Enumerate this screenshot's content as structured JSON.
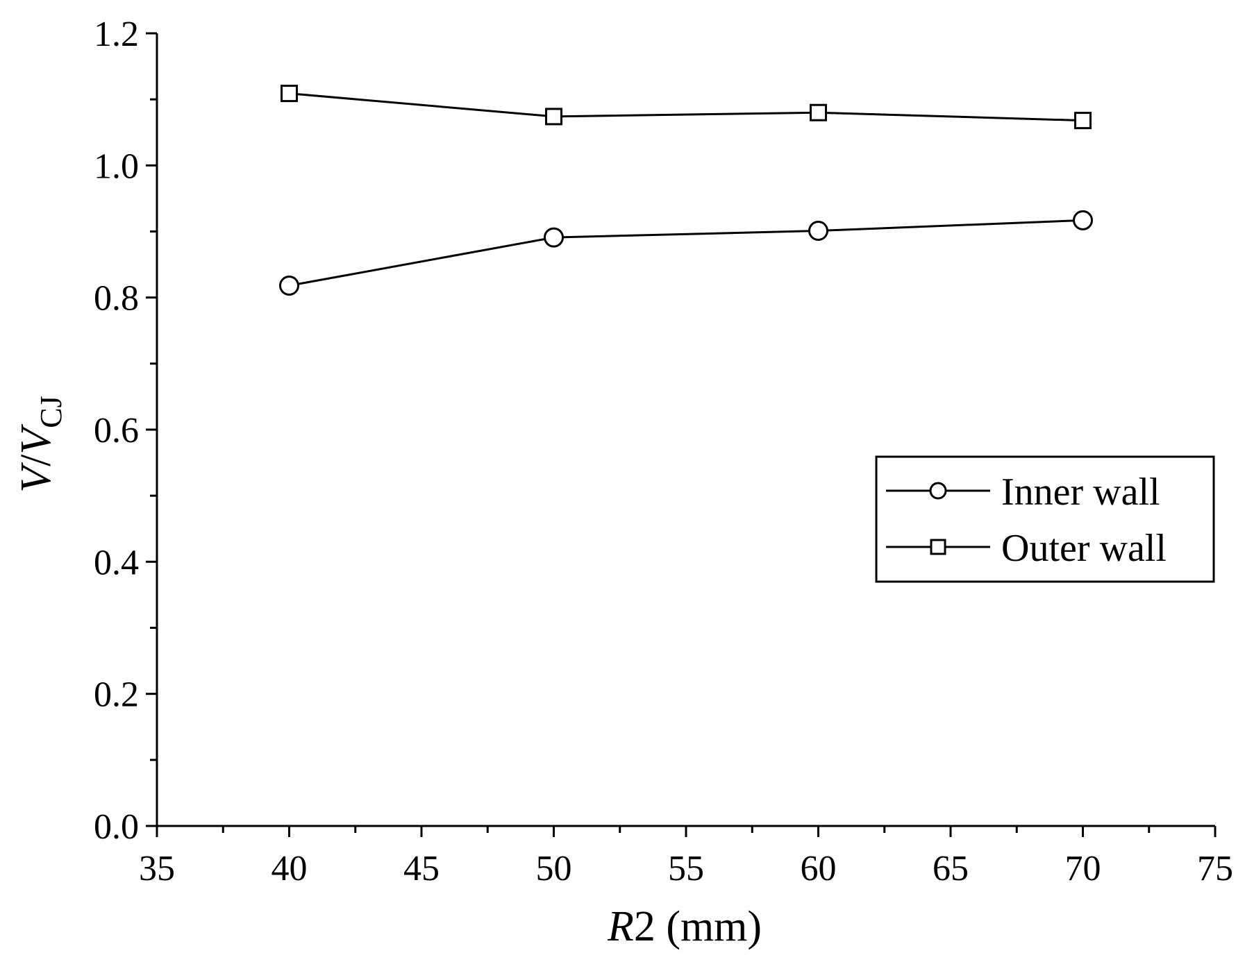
{
  "chart_data": {
    "type": "line",
    "x": [
      40,
      50,
      60,
      70
    ],
    "series": [
      {
        "name": "Inner wall",
        "marker": "circle",
        "values": [
          0.818,
          0.891,
          0.901,
          0.917
        ]
      },
      {
        "name": "Outer wall",
        "marker": "square",
        "values": [
          1.109,
          1.074,
          1.08,
          1.068
        ]
      }
    ],
    "xlabel": {
      "italic": "R",
      "rest": "2 (mm)"
    },
    "ylabel": {
      "v1": "V",
      "slash": "/",
      "v2": "V",
      "sub": "CJ"
    },
    "xlim": [
      35,
      75
    ],
    "ylim": [
      0.0,
      1.2
    ],
    "xticks": [
      "35",
      "40",
      "45",
      "50",
      "55",
      "60",
      "65",
      "70",
      "75"
    ],
    "yticks": [
      "0.0",
      "0.2",
      "0.4",
      "0.6",
      "0.8",
      "1.0",
      "1.2"
    ],
    "legend_position": "right-middle",
    "grid": false
  }
}
